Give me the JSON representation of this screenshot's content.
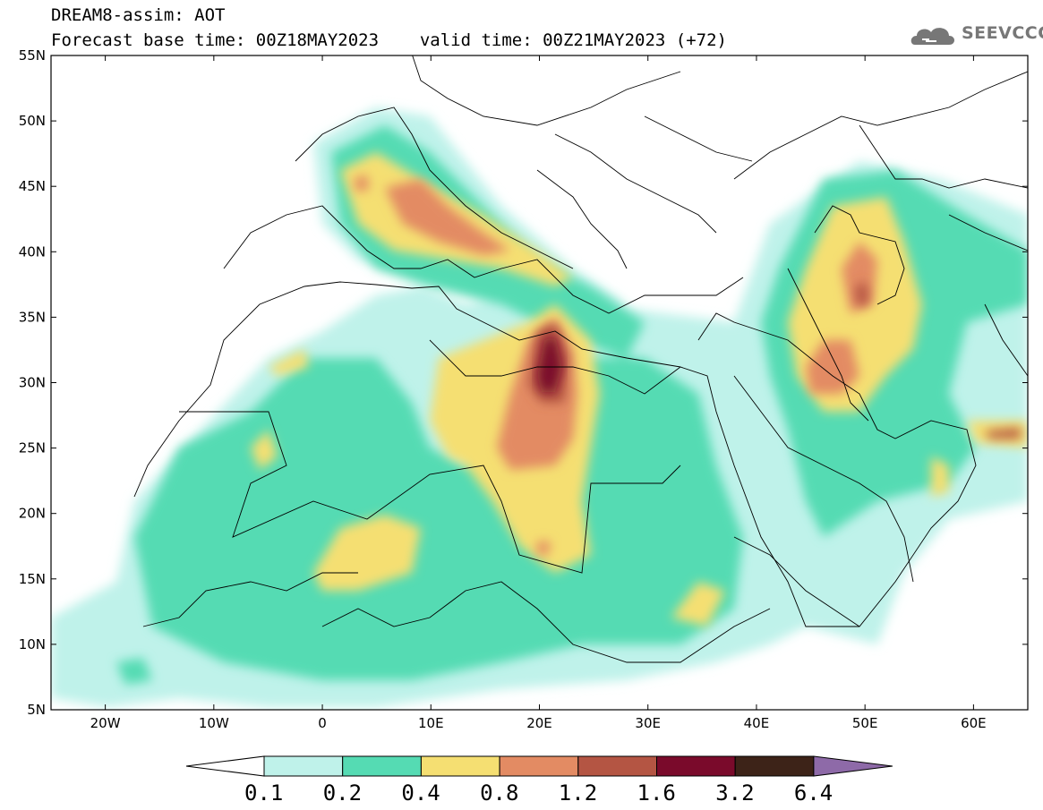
{
  "header": {
    "title": "DREAM8-assim: AOT",
    "subtitle_base": "Forecast base time: 00Z18MAY2023",
    "subtitle_valid": "valid time: 00Z21MAY2023 (+72)",
    "logo_text": "SEEVCCC",
    "logo_icon": "cloud-logo-icon"
  },
  "map": {
    "lon_range": [
      -25,
      65
    ],
    "lat_range": [
      5,
      55
    ],
    "lat_ticks": [
      "55N",
      "50N",
      "45N",
      "40N",
      "35N",
      "30N",
      "25N",
      "20N",
      "15N",
      "10N",
      "5N"
    ],
    "lat_values": [
      55,
      50,
      45,
      40,
      35,
      30,
      25,
      20,
      15,
      10,
      5
    ],
    "lon_ticks": [
      "20W",
      "10W",
      "0",
      "10E",
      "20E",
      "30E",
      "40E",
      "50E",
      "60E"
    ],
    "lon_values": [
      -20,
      -10,
      0,
      10,
      20,
      30,
      40,
      50,
      60
    ]
  },
  "colorbar": {
    "levels": [
      "0.1",
      "0.2",
      "0.4",
      "0.8",
      "1.2",
      "1.6",
      "3.2",
      "6.4"
    ],
    "colors": [
      "#bff2ea",
      "#55dbb3",
      "#f5df72",
      "#e38b63",
      "#b45543",
      "#7a0a2b",
      "#3d2318",
      "#8e6aa8"
    ],
    "under_color": "#ffffff"
  }
}
